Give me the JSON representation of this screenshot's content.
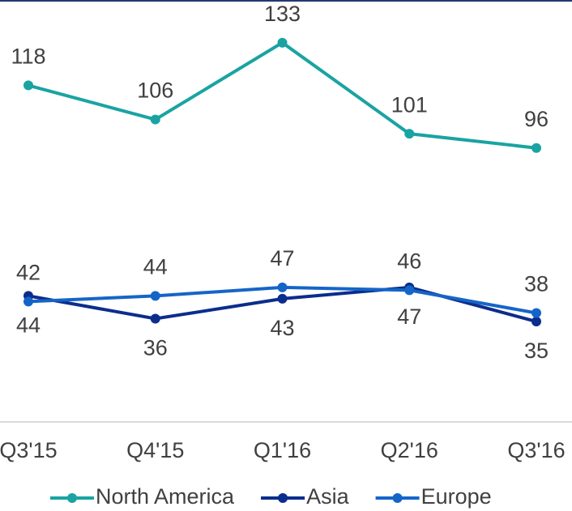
{
  "chart_data": {
    "type": "line",
    "categories": [
      "Q3'15",
      "Q4'15",
      "Q1'16",
      "Q2'16",
      "Q3'16"
    ],
    "series": [
      {
        "name": "North America",
        "color": "#1aa3a3",
        "values": [
          118,
          106,
          133,
          101,
          96
        ]
      },
      {
        "name": "Asia",
        "color": "#0b2d8c",
        "values": [
          44,
          36,
          43,
          47,
          35
        ]
      },
      {
        "name": "Europe",
        "color": "#1565c8",
        "values": [
          42,
          44,
          47,
          46,
          38
        ]
      }
    ],
    "ylim": [
      0,
      148
    ]
  }
}
